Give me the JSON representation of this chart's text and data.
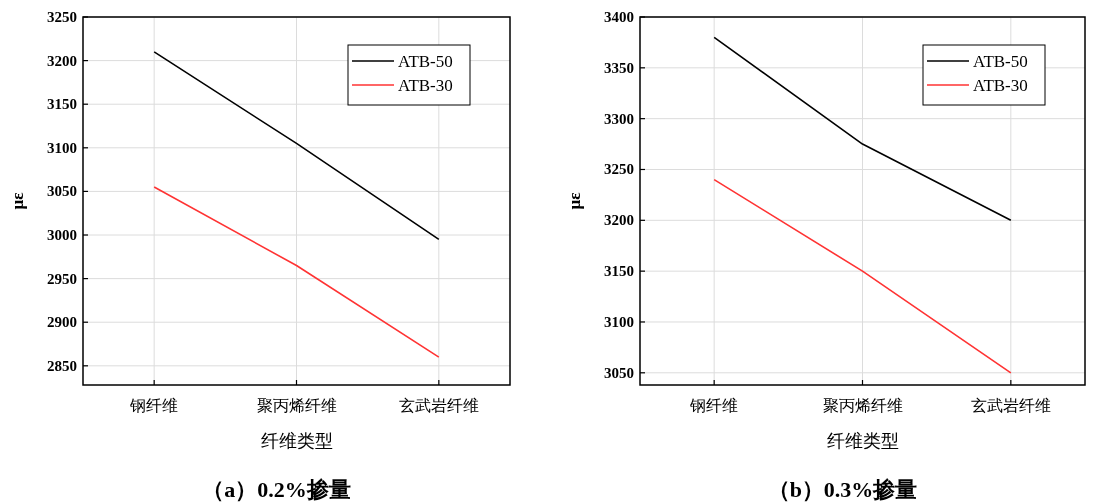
{
  "chart_data": [
    {
      "type": "line",
      "title": "（a）0.2%掺量",
      "xlabel": "纤维类型",
      "ylabel": "με",
      "categories": [
        "钢纤维",
        "聚丙烯纤维",
        "玄武岩纤维"
      ],
      "ylim": [
        2828,
        3250
      ],
      "yticks": [
        2850,
        2900,
        2950,
        3000,
        3050,
        3100,
        3150,
        3200,
        3250
      ],
      "grid": true,
      "legend": "top right",
      "marker": "none",
      "line_style": "solid",
      "series": [
        {
          "name": "ATB-50",
          "color": "#000000",
          "values": [
            3210,
            3105,
            2995
          ]
        },
        {
          "name": "ATB-30",
          "color": "#ff3333",
          "values": [
            3055,
            2965,
            2860
          ]
        }
      ]
    },
    {
      "type": "line",
      "title": "（b）0.3%掺量",
      "xlabel": "纤维类型",
      "ylabel": "με",
      "categories": [
        "钢纤维",
        "聚丙烯纤维",
        "玄武岩纤维"
      ],
      "ylim": [
        3038,
        3400
      ],
      "yticks": [
        3050,
        3100,
        3150,
        3200,
        3250,
        3300,
        3350,
        3400
      ],
      "grid": true,
      "legend": "top right",
      "marker": "none",
      "line_style": "solid",
      "series": [
        {
          "name": "ATB-50",
          "color": "#000000",
          "values": [
            3380,
            3275,
            3200
          ]
        },
        {
          "name": "ATB-30",
          "color": "#ff3333",
          "values": [
            3240,
            3150,
            3050
          ]
        }
      ]
    }
  ]
}
